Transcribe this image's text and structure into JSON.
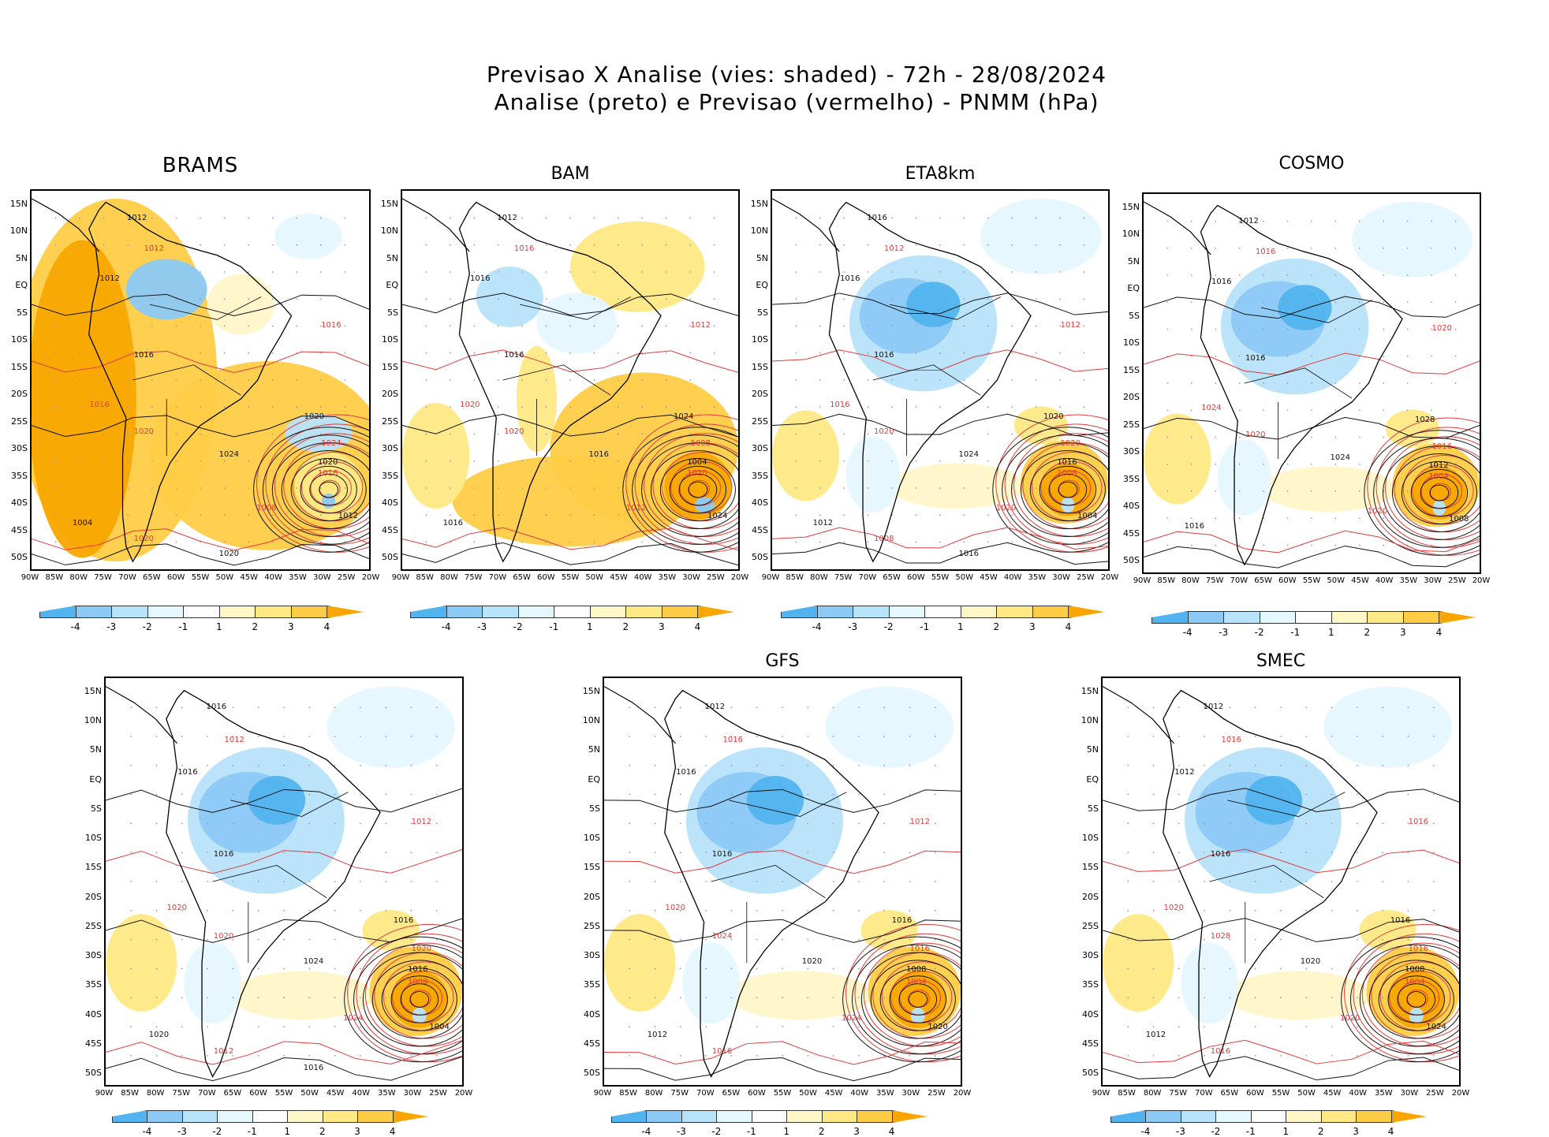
{
  "header": {
    "line1": "Previsao X Analise (vies: shaded) - 72h - 28/08/2024",
    "line2": "Analise (preto) e Previsao (vermelho) - PNMM (hPa)"
  },
  "colors": {
    "neg4": "#52b4ee",
    "neg3": "#8cc9f5",
    "neg2": "#b7e3fb",
    "neg1": "#e5f7ff",
    "pos1": "#fff7c8",
    "pos2": "#ffe985",
    "pos3": "#ffcc46",
    "pos4": "#f9a600",
    "analysis": "#111111",
    "forecast": "#e23a3a",
    "grid": "#9a9a9a"
  },
  "axes": {
    "lat_labels": [
      "15N",
      "10N",
      "5N",
      "EQ",
      "5S",
      "10S",
      "15S",
      "20S",
      "25S",
      "30S",
      "35S",
      "40S",
      "45S",
      "50S"
    ],
    "lon_labels": [
      "90W",
      "85W",
      "80W",
      "75W",
      "70W",
      "65W",
      "60W",
      "55W",
      "50W",
      "45W",
      "40W",
      "35W",
      "30W",
      "25W",
      "20W"
    ]
  },
  "colorbar_ticks": [
    "-4",
    "-3",
    "-2",
    "-1",
    "1",
    "2",
    "3",
    "4"
  ],
  "panels": [
    {
      "id": "brams",
      "title": "BRAMS",
      "bias": "positive",
      "isobars": [
        "1012",
        "1012",
        "1012",
        "1016",
        "1016",
        "1016",
        "1020",
        "1020",
        "1024",
        "1024",
        "1020",
        "1016",
        "1012",
        "1008",
        "1004",
        "1020",
        "1020"
      ]
    },
    {
      "id": "bam",
      "title": "BAM",
      "bias": "mixed",
      "isobars": [
        "1012",
        "1016",
        "1016",
        "1012",
        "1016",
        "1020",
        "1024",
        "1020",
        "1016",
        "1008",
        "1004",
        "1020",
        "1024",
        "1012",
        "1016"
      ]
    },
    {
      "id": "eta8km",
      "title": "ETA8km",
      "bias": "negative",
      "isobars": [
        "1016",
        "1012",
        "1016",
        "1012",
        "1016",
        "1016",
        "1020",
        "1020",
        "1024",
        "1020",
        "1016",
        "1008",
        "1004",
        "1020",
        "1012",
        "1008",
        "1016"
      ]
    },
    {
      "id": "cosmo",
      "title": "COSMO",
      "bias": "negative",
      "isobars": [
        "1012",
        "1016",
        "1016",
        "1020",
        "1016",
        "1024",
        "1028",
        "1020",
        "1024",
        "1016",
        "1012",
        "1004",
        "1008",
        "1020",
        "1016"
      ]
    },
    {
      "id": "panel5",
      "title": "",
      "bias": "negative",
      "isobars": [
        "1016",
        "1012",
        "1016",
        "1012",
        "1016",
        "1020",
        "1016",
        "1020",
        "1024",
        "1020",
        "1016",
        "1008",
        "1004",
        "1024",
        "1020",
        "1012",
        "1016"
      ]
    },
    {
      "id": "gfs",
      "title": "GFS",
      "bias": "negative",
      "isobars": [
        "1012",
        "1016",
        "1016",
        "1012",
        "1016",
        "1020",
        "1016",
        "1024",
        "1020",
        "1016",
        "1008",
        "1004",
        "1020",
        "1024",
        "1012",
        "1016"
      ]
    },
    {
      "id": "smec",
      "title": "SMEC",
      "bias": "negative",
      "isobars": [
        "1012",
        "1016",
        "1012",
        "1016",
        "1016",
        "1020",
        "1016",
        "1028",
        "1020",
        "1016",
        "1008",
        "1004",
        "1024",
        "1020",
        "1012",
        "1016"
      ]
    }
  ]
}
